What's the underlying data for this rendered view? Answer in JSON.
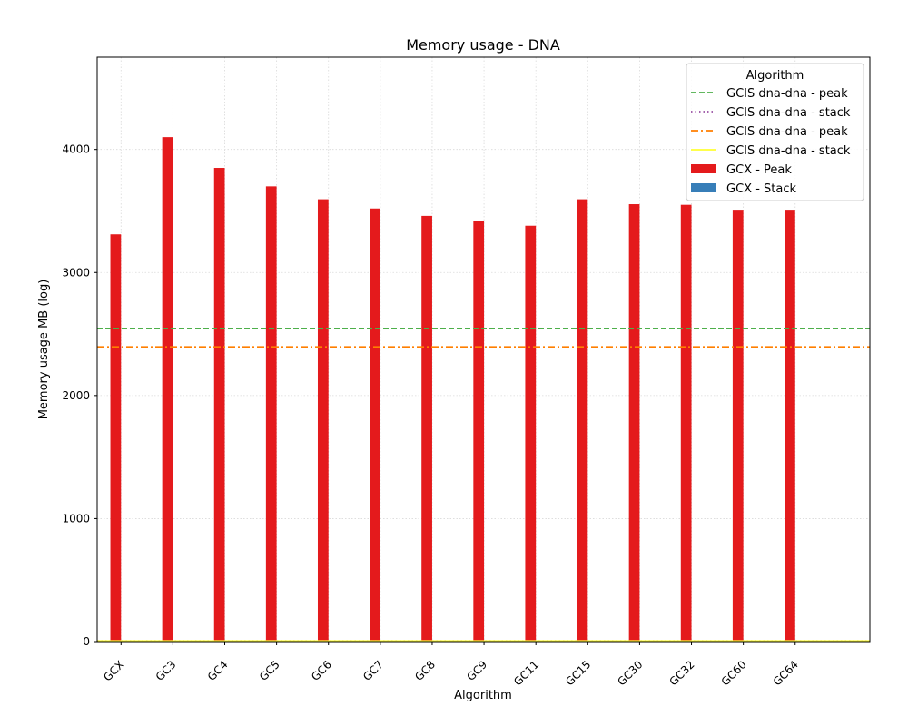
{
  "chart_data": {
    "type": "bar",
    "title": "Memory usage -  DNA",
    "xlabel": "Algorithm",
    "ylabel": "Memory usage MB (log)",
    "ylim": [
      0,
      4750
    ],
    "yticks": [
      0,
      1000,
      2000,
      3000,
      4000
    ],
    "grid": true,
    "categories": [
      "GCX",
      "GC3",
      "GC4",
      "GC5",
      "GC6",
      "GC7",
      "GC8",
      "GC9",
      "GC11",
      "GC15",
      "GC30",
      "GC32",
      "GC60",
      "GC64"
    ],
    "series": [
      {
        "name": "GCX - Peak",
        "color": "#e41a1c",
        "values": [
          3310,
          4100,
          3850,
          3700,
          3595,
          3520,
          3460,
          3420,
          3380,
          3595,
          3555,
          3550,
          3510,
          3510
        ]
      },
      {
        "name": "GCX - Stack",
        "color": "#377eb8",
        "values": [
          8,
          8,
          8,
          8,
          8,
          8,
          8,
          8,
          8,
          8,
          8,
          8,
          8,
          8
        ]
      }
    ],
    "reference_lines": [
      {
        "name": "GCIS dna-dna - peak",
        "value": 2545,
        "color": "#4daf4a",
        "style": "dashed"
      },
      {
        "name": "GCIS dna-dna - stack",
        "value": 5,
        "color": "#984ea3",
        "style": "dotted"
      },
      {
        "name": "GCIS dna-dna - peak",
        "value": 2395,
        "color": "#ff7f00",
        "style": "dashdot"
      },
      {
        "name": "GCIS dna-dna - stack",
        "value": 5,
        "color": "#ffff33",
        "style": "solid"
      }
    ],
    "legend": {
      "title": "Algorithm",
      "placement": "top-right",
      "entries": [
        {
          "label": "GCIS dna-dna - peak",
          "kind": "line",
          "color": "#4daf4a",
          "style": "dashed"
        },
        {
          "label": "GCIS dna-dna - stack",
          "kind": "line",
          "color": "#984ea3",
          "style": "dotted"
        },
        {
          "label": "GCIS dna-dna - peak",
          "kind": "line",
          "color": "#ff7f00",
          "style": "dashdot"
        },
        {
          "label": "GCIS dna-dna - stack",
          "kind": "line",
          "color": "#ffff33",
          "style": "solid"
        },
        {
          "label": "GCX - Peak",
          "kind": "patch",
          "color": "#e41a1c"
        },
        {
          "label": "GCX - Stack",
          "kind": "patch",
          "color": "#377eb8"
        }
      ]
    }
  }
}
